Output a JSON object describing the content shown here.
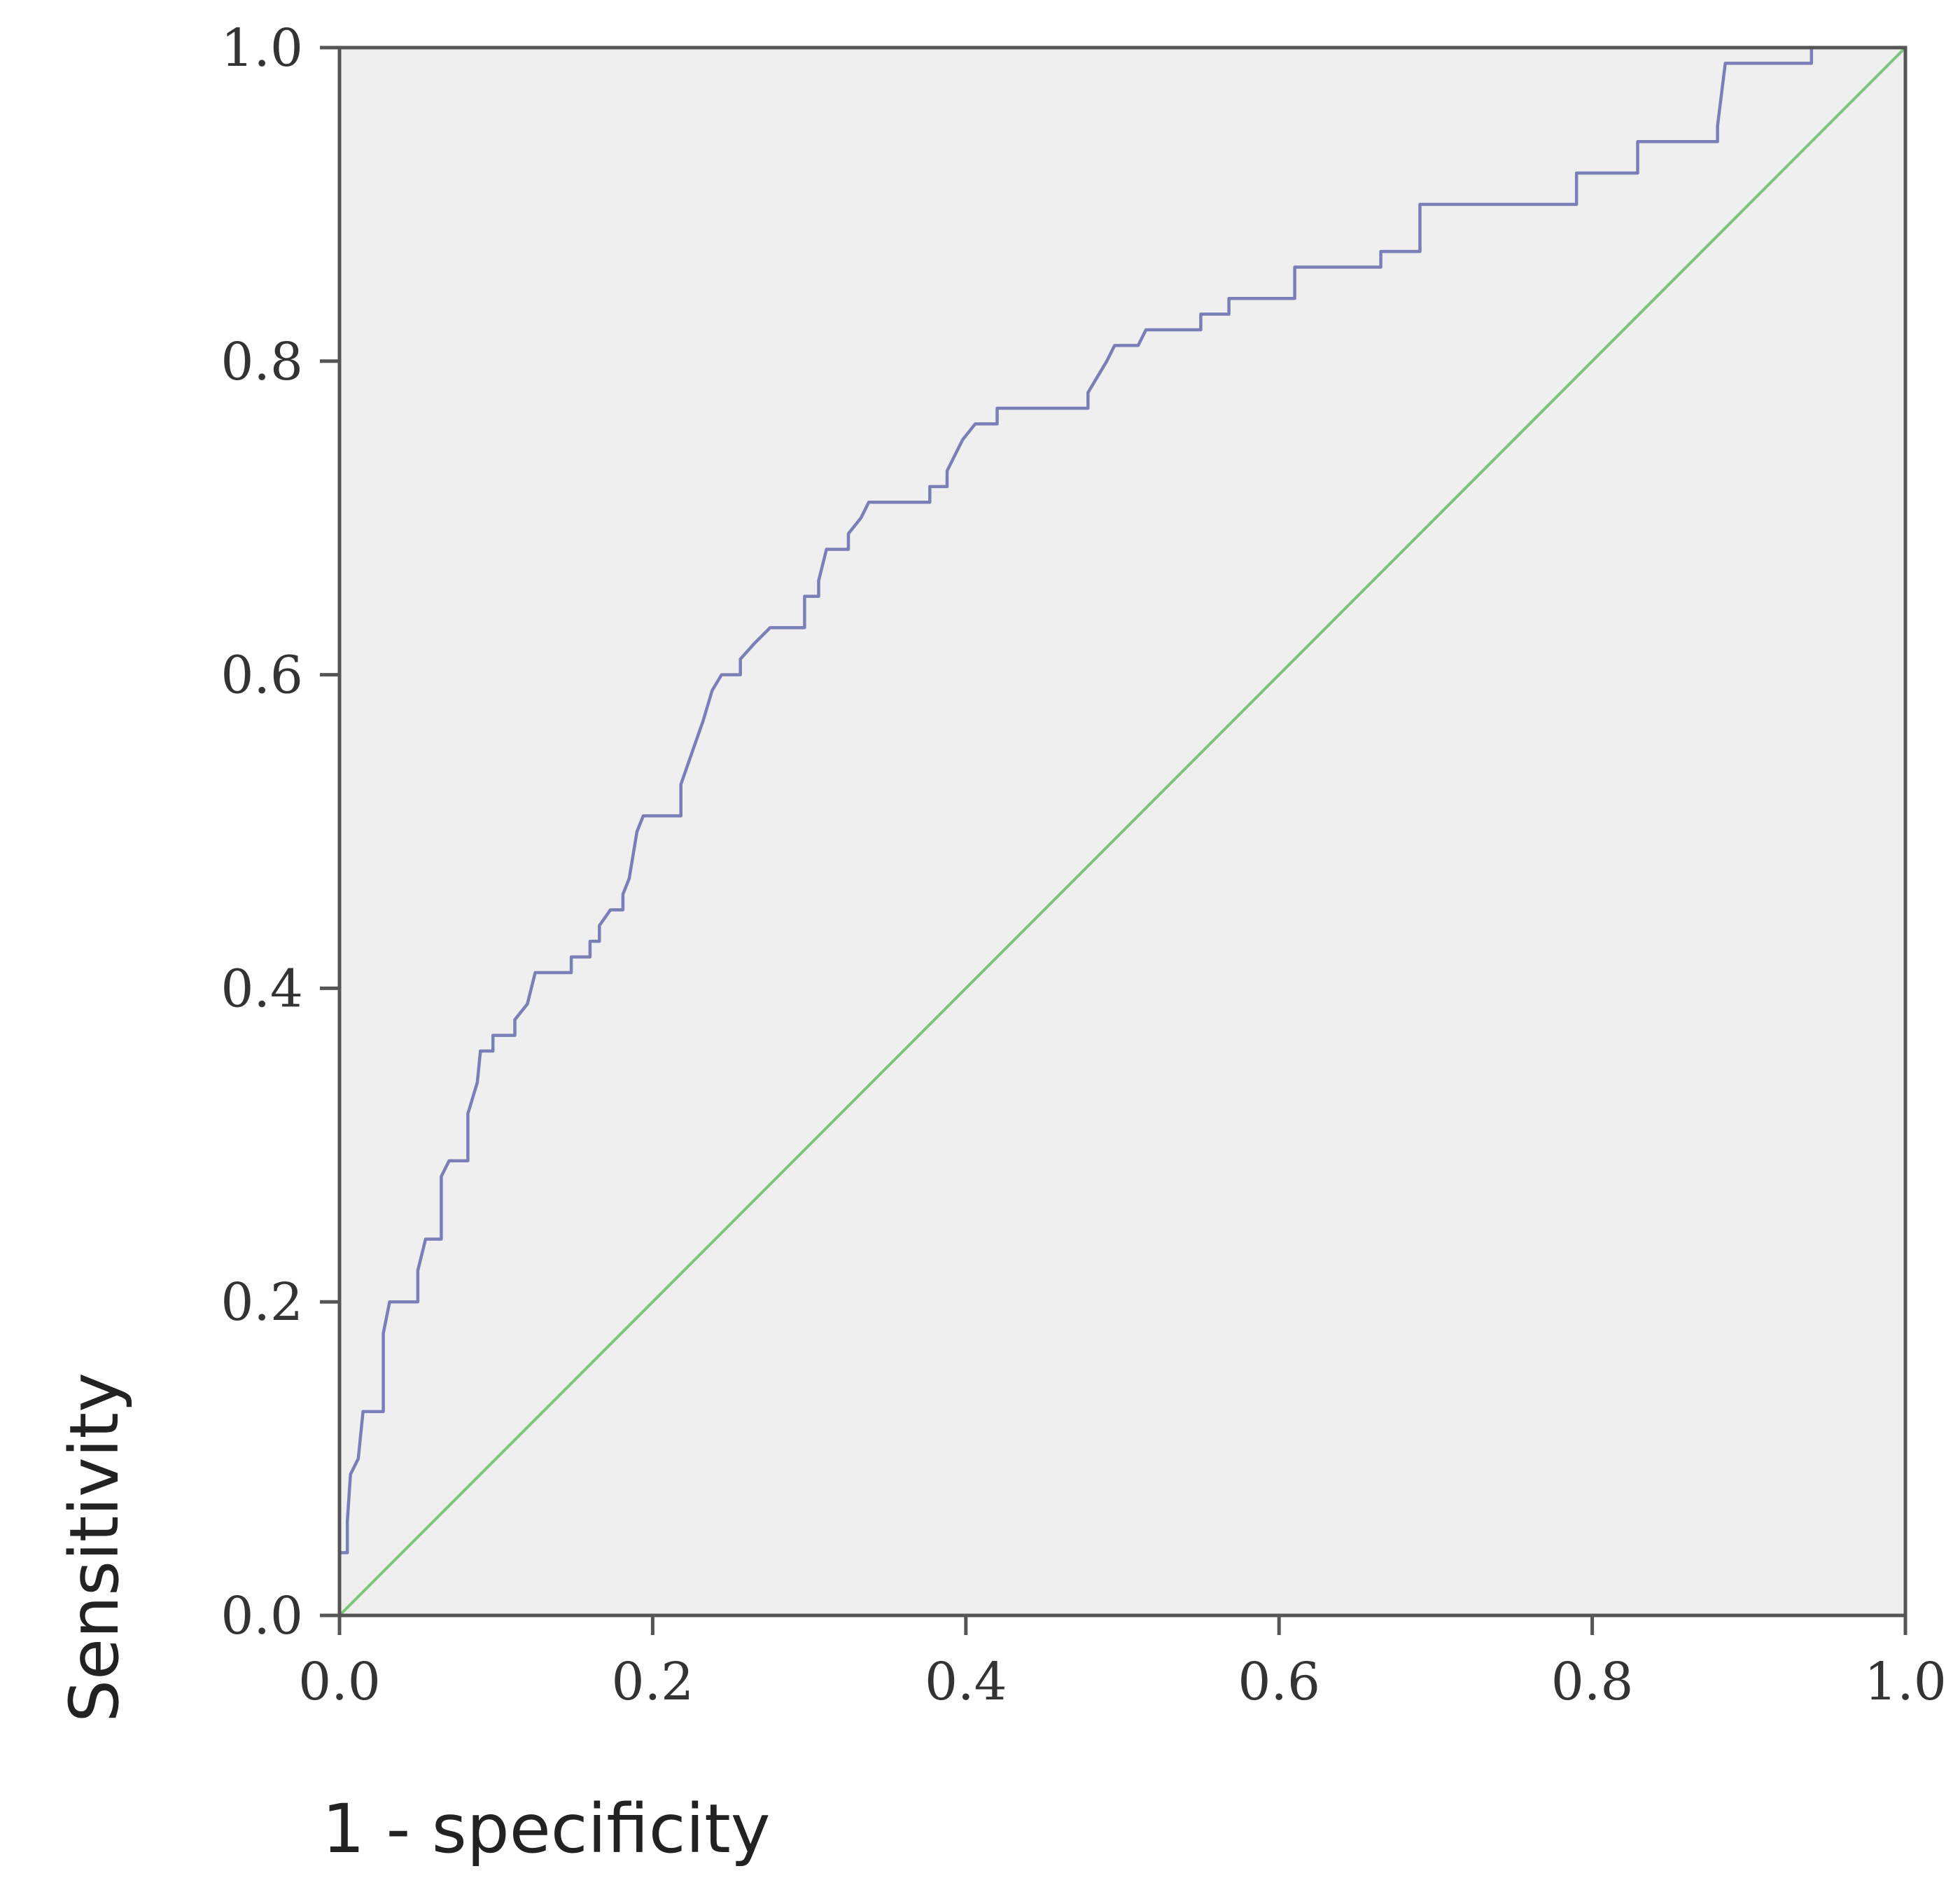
{
  "colors": {
    "plot_background": "#efeff0",
    "axis": "#555555",
    "roc_curve": "#7a7fb8",
    "reference_line": "#7cc47a"
  },
  "chart_data": {
    "type": "line",
    "title": "",
    "xlabel": "1 - specificity",
    "ylabel": "Sensitivity",
    "xlim": [
      0,
      1
    ],
    "ylim": [
      0,
      1
    ],
    "x_ticks": [
      "0.0",
      "0.2",
      "0.4",
      "0.6",
      "0.8",
      "1.0"
    ],
    "y_ticks": [
      "0.0",
      "0.2",
      "0.4",
      "0.6",
      "0.8",
      "1.0"
    ],
    "grid": false,
    "legend": "none",
    "series": [
      {
        "style": "step",
        "points": [
          [
            0.0,
            0.0
          ],
          [
            0.0,
            0.04
          ],
          [
            0.005,
            0.04
          ],
          [
            0.005,
            0.06
          ],
          [
            0.007,
            0.09
          ],
          [
            0.012,
            0.1
          ],
          [
            0.015,
            0.13
          ],
          [
            0.028,
            0.13
          ],
          [
            0.028,
            0.18
          ],
          [
            0.032,
            0.2
          ],
          [
            0.05,
            0.2
          ],
          [
            0.05,
            0.22
          ],
          [
            0.055,
            0.24
          ],
          [
            0.065,
            0.24
          ],
          [
            0.065,
            0.28
          ],
          [
            0.07,
            0.29
          ],
          [
            0.082,
            0.29
          ],
          [
            0.082,
            0.32
          ],
          [
            0.088,
            0.34
          ],
          [
            0.09,
            0.36
          ],
          [
            0.098,
            0.36
          ],
          [
            0.098,
            0.37
          ],
          [
            0.112,
            0.37
          ],
          [
            0.112,
            0.38
          ],
          [
            0.12,
            0.39
          ],
          [
            0.125,
            0.41
          ],
          [
            0.148,
            0.41
          ],
          [
            0.148,
            0.42
          ],
          [
            0.16,
            0.42
          ],
          [
            0.16,
            0.43
          ],
          [
            0.166,
            0.43
          ],
          [
            0.166,
            0.44
          ],
          [
            0.173,
            0.45
          ],
          [
            0.181,
            0.45
          ],
          [
            0.181,
            0.46
          ],
          [
            0.185,
            0.47
          ],
          [
            0.19,
            0.5
          ],
          [
            0.194,
            0.51
          ],
          [
            0.218,
            0.51
          ],
          [
            0.218,
            0.53
          ],
          [
            0.225,
            0.55
          ],
          [
            0.232,
            0.57
          ],
          [
            0.238,
            0.59
          ],
          [
            0.244,
            0.6
          ],
          [
            0.256,
            0.6
          ],
          [
            0.256,
            0.61
          ],
          [
            0.265,
            0.62
          ],
          [
            0.275,
            0.63
          ],
          [
            0.297,
            0.63
          ],
          [
            0.297,
            0.65
          ],
          [
            0.306,
            0.65
          ],
          [
            0.306,
            0.66
          ],
          [
            0.311,
            0.68
          ],
          [
            0.325,
            0.68
          ],
          [
            0.325,
            0.69
          ],
          [
            0.333,
            0.7
          ],
          [
            0.338,
            0.71
          ],
          [
            0.377,
            0.71
          ],
          [
            0.377,
            0.72
          ],
          [
            0.388,
            0.72
          ],
          [
            0.388,
            0.73
          ],
          [
            0.393,
            0.74
          ],
          [
            0.398,
            0.75
          ],
          [
            0.406,
            0.76
          ],
          [
            0.42,
            0.76
          ],
          [
            0.42,
            0.77
          ],
          [
            0.478,
            0.77
          ],
          [
            0.478,
            0.78
          ],
          [
            0.484,
            0.79
          ],
          [
            0.49,
            0.8
          ],
          [
            0.495,
            0.81
          ],
          [
            0.51,
            0.81
          ],
          [
            0.515,
            0.82
          ],
          [
            0.55,
            0.82
          ],
          [
            0.55,
            0.83
          ],
          [
            0.568,
            0.83
          ],
          [
            0.568,
            0.84
          ],
          [
            0.61,
            0.84
          ],
          [
            0.61,
            0.86
          ],
          [
            0.665,
            0.86
          ],
          [
            0.665,
            0.87
          ],
          [
            0.69,
            0.87
          ],
          [
            0.69,
            0.9
          ],
          [
            0.79,
            0.9
          ],
          [
            0.79,
            0.92
          ],
          [
            0.829,
            0.92
          ],
          [
            0.829,
            0.94
          ],
          [
            0.88,
            0.94
          ],
          [
            0.88,
            0.95
          ],
          [
            0.885,
            0.99
          ],
          [
            0.94,
            0.99
          ],
          [
            0.94,
            1.0
          ],
          [
            1.0,
            1.0
          ]
        ]
      },
      {
        "style": "reference",
        "points": [
          [
            0,
            0
          ],
          [
            1,
            1
          ]
        ]
      }
    ]
  }
}
